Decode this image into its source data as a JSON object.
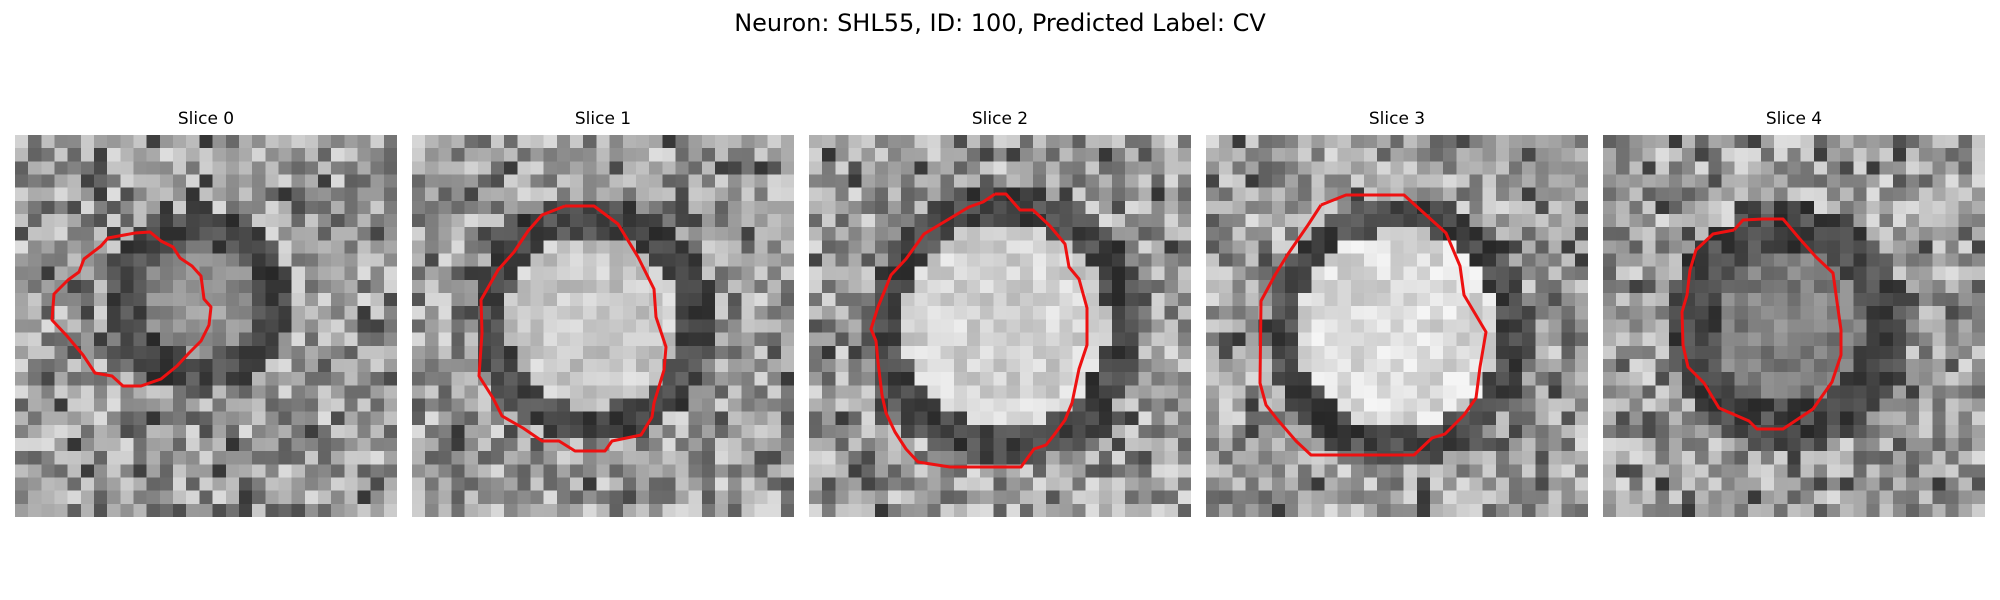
{
  "figure": {
    "title": "Neuron: SHL55, ID: 100, Predicted Label: CV",
    "contour_color": "#ee1111"
  },
  "panels": [
    {
      "title": "Slice 0",
      "image": "grayscale EM crop of a small dark-ringed vesicle with a lighter center, red contour tracing the ring",
      "seed": 11
    },
    {
      "title": "Slice 1",
      "image": "grayscale EM crop of a larger round light vesicle with dark rim, red contour around it",
      "seed": 23
    },
    {
      "title": "Slice 2",
      "image": "grayscale EM crop of a large bright round vesicle with dark rim, red contour around it",
      "seed": 37
    },
    {
      "title": "Slice 3",
      "image": "grayscale EM crop of a large bright round vesicle, red contour around it",
      "seed": 41
    },
    {
      "title": "Slice 4",
      "image": "grayscale EM crop of a medium dark-rimmed vesicle, red contour around it",
      "seed": 53
    }
  ]
}
